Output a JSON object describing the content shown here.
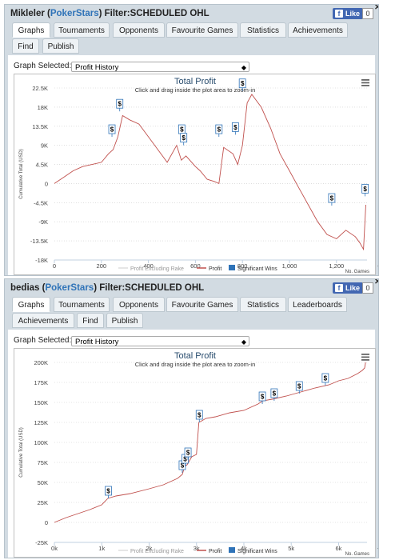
{
  "panels": [
    {
      "player": "Mikleler",
      "site": "PokerStars",
      "filter_label": "Filter:SCHEDULED OHL",
      "like_label": "Like",
      "like_count": "0",
      "tabs": [
        "Graphs",
        "Tournaments",
        "Opponents",
        "Favourite Games",
        "Statistics",
        "Achievements",
        "Find",
        "Publish"
      ],
      "active_tab": "Graphs",
      "graph_selected_label": "Graph Selected:",
      "graph_selected_value": "Profit History",
      "legend": [
        "Profit Excluding Rake",
        "Profit",
        "Significant Wins"
      ],
      "xaxis_title": "No. Games"
    },
    {
      "player": "bedias",
      "site": "PokerStars",
      "filter_label": "Filter:SCHEDULED OHL",
      "like_label": "Like",
      "like_count": "0",
      "tabs": [
        "Graphs",
        "Tournaments",
        "Opponents",
        "Favourite Games",
        "Statistics",
        "Leaderboards",
        "Achievements",
        "Find",
        "Publish"
      ],
      "active_tab": "Graphs",
      "graph_selected_label": "Graph Selected:",
      "graph_selected_value": "Profit History",
      "legend": [
        "Profit Excluding Rake",
        "Profit",
        "Significant Wins"
      ],
      "xaxis_title": "No. Games"
    }
  ],
  "chart_data": [
    {
      "type": "line",
      "title": "Total Profit",
      "subtitle": "Click and drag inside the plot area to zoom-in",
      "ylabel": "Cumulative Total (USD)",
      "xlabel": "No. Games",
      "x_ticks": [
        "0",
        "200",
        "400",
        "600",
        "800",
        "1,000",
        "1,200"
      ],
      "y_ticks": [
        "22.5K",
        "18K",
        "13.5K",
        "9K",
        "4.5K",
        "0",
        "-4.5K",
        "-9K",
        "-13.5K",
        "-18K"
      ],
      "xlim": [
        0,
        1330
      ],
      "ylim": [
        -18000,
        22500
      ],
      "series": [
        {
          "name": "Profit",
          "color": "#c0504d",
          "x": [
            0,
            40,
            80,
            120,
            160,
            200,
            230,
            250,
            270,
            290,
            320,
            360,
            400,
            440,
            480,
            520,
            540,
            560,
            600,
            620,
            650,
            680,
            700,
            720,
            760,
            780,
            800,
            820,
            840,
            880,
            920,
            960,
            1000,
            1040,
            1080,
            1120,
            1160,
            1200,
            1240,
            1280,
            1300,
            1315,
            1325
          ],
          "y": [
            0,
            1500,
            3000,
            4000,
            4500,
            5000,
            7000,
            8000,
            11000,
            16000,
            15000,
            14000,
            11000,
            8000,
            5000,
            9000,
            5500,
            6500,
            4000,
            3000,
            1000,
            500,
            0,
            8500,
            7000,
            4500,
            9000,
            19000,
            21000,
            18000,
            13000,
            7000,
            3000,
            -1000,
            -5000,
            -9000,
            -12000,
            -13000,
            -11000,
            -12500,
            -14000,
            -15500,
            -5000
          ]
        }
      ],
      "significant_wins": [
        {
          "x": 245,
          "y": 11000
        },
        {
          "x": 278,
          "y": 17000
        },
        {
          "x": 542,
          "y": 11000
        },
        {
          "x": 550,
          "y": 9000
        },
        {
          "x": 700,
          "y": 11000
        },
        {
          "x": 770,
          "y": 11500
        },
        {
          "x": 800,
          "y": 21800
        },
        {
          "x": 1180,
          "y": -5200
        },
        {
          "x": 1322,
          "y": -3000
        }
      ],
      "colors": {
        "profit": "#c0504d",
        "excl_rake": "#dddddd",
        "significant": "#2f73b8"
      }
    },
    {
      "type": "line",
      "title": "Total Profit",
      "subtitle": "Click and drag inside the plot area to zoom-in",
      "ylabel": "Cumulative Total (USD)",
      "xlabel": "No. Games",
      "x_ticks": [
        "0k",
        "1k",
        "2k",
        "3k",
        "4k",
        "5k",
        "6k"
      ],
      "y_ticks": [
        "200K",
        "175K",
        "150K",
        "125K",
        "100K",
        "75K",
        "50K",
        "25K",
        "0",
        "-25K"
      ],
      "xlim": [
        0,
        6600
      ],
      "ylim": [
        -25000,
        200000
      ],
      "series": [
        {
          "name": "Profit",
          "color": "#c0504d",
          "x": [
            0,
            250,
            500,
            750,
            1000,
            1130,
            1300,
            1600,
            2000,
            2300,
            2600,
            2700,
            2750,
            2800,
            2900,
            3000,
            3050,
            3200,
            3400,
            3700,
            4000,
            4300,
            4400,
            4600,
            4900,
            5200,
            5500,
            5800,
            6000,
            6200,
            6400,
            6500,
            6550,
            6570
          ],
          "y": [
            0,
            6000,
            11000,
            16000,
            22000,
            30000,
            33000,
            36000,
            42000,
            47000,
            55000,
            60000,
            70000,
            72000,
            82000,
            85000,
            125000,
            130000,
            132000,
            137000,
            140000,
            148000,
            152000,
            154000,
            158000,
            163000,
            168000,
            172000,
            177000,
            180000,
            186000,
            190000,
            193000,
            200000
          ]
        }
      ],
      "significant_wins": [
        {
          "x": 1140,
          "y": 30000
        },
        {
          "x": 2700,
          "y": 62000
        },
        {
          "x": 2760,
          "y": 70000
        },
        {
          "x": 2820,
          "y": 78000
        },
        {
          "x": 3060,
          "y": 125000
        },
        {
          "x": 4390,
          "y": 148000
        },
        {
          "x": 4640,
          "y": 152000
        },
        {
          "x": 5170,
          "y": 161000
        },
        {
          "x": 5720,
          "y": 171000
        }
      ],
      "colors": {
        "profit": "#c0504d",
        "excl_rake": "#dddddd",
        "significant": "#2f73b8"
      }
    }
  ]
}
